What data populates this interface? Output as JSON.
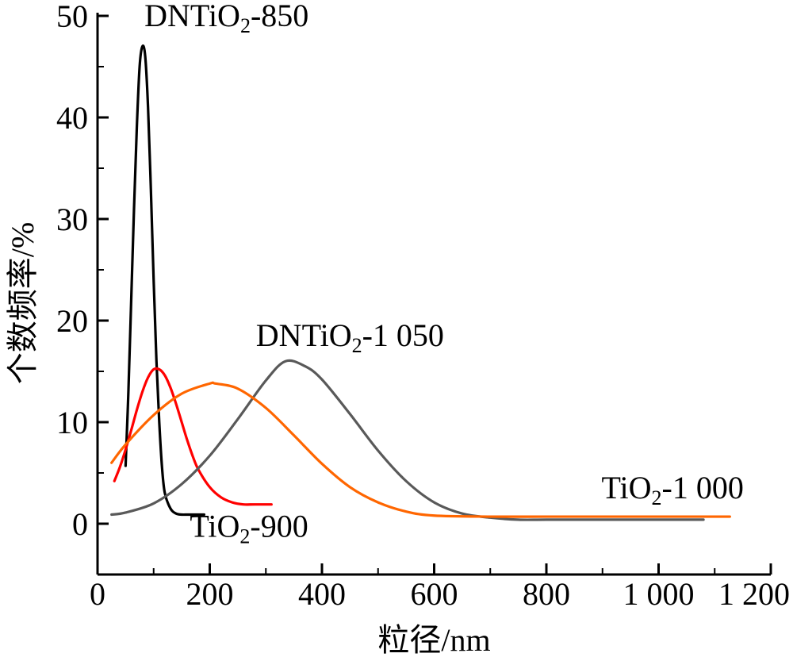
{
  "chart_data": {
    "type": "line",
    "title": "",
    "xlabel": "粒径/nm",
    "ylabel": "个数频率/%",
    "xlim": [
      0,
      1200
    ],
    "ylim": [
      -5,
      50
    ],
    "xticks": [
      0,
      200,
      400,
      600,
      800,
      1000,
      1200
    ],
    "xtick_labels": [
      "0",
      "200",
      "400",
      "600",
      "800",
      "1 000",
      "1 200"
    ],
    "yticks": [
      0,
      10,
      20,
      30,
      40,
      50
    ],
    "ytick_labels": [
      "0",
      "10",
      "20",
      "30",
      "40",
      "50"
    ],
    "grid": false,
    "legend": "none",
    "series": [
      {
        "name": "DNTiO2-850",
        "label": {
          "main": "DNTiO",
          "sub": "2",
          "tail": "-850"
        },
        "color": "#000000",
        "x": [
          50,
          55,
          60,
          65,
          70,
          75,
          80,
          85,
          90,
          95,
          100,
          105,
          110,
          115,
          120,
          130,
          140,
          150,
          160,
          170,
          190
        ],
        "y": [
          5.7,
          13,
          22,
          31,
          39,
          45,
          47,
          46,
          41,
          33,
          24,
          16,
          10,
          5.5,
          3,
          1.5,
          1,
          0.9,
          0.9,
          0.9,
          0.9
        ]
      },
      {
        "name": "TiO2-900",
        "label": {
          "main": "TiO",
          "sub": "2",
          "tail": "-900"
        },
        "color": "#ff0000",
        "x": [
          30,
          40,
          50,
          60,
          70,
          80,
          90,
          100,
          110,
          120,
          130,
          140,
          150,
          160,
          170,
          180,
          200,
          220,
          240,
          260,
          280,
          310
        ],
        "y": [
          4.2,
          5.6,
          7.3,
          9.2,
          11.2,
          13,
          14.4,
          15.2,
          15.2,
          14.6,
          13.4,
          11.8,
          10,
          8.2,
          6.6,
          5.3,
          3.6,
          2.6,
          2.1,
          1.9,
          1.9,
          1.9
        ]
      },
      {
        "name": "DNTiO2-1 050",
        "label": {
          "main": "DNTiO",
          "sub": "2",
          "tail": "-1 050"
        },
        "color": "#595959",
        "x": [
          25,
          50,
          100,
          150,
          200,
          250,
          300,
          335,
          370,
          400,
          450,
          500,
          550,
          600,
          650,
          700,
          750,
          800,
          900,
          1000,
          1080
        ],
        "y": [
          0.9,
          1.1,
          2,
          3.9,
          6.7,
          10.3,
          14.1,
          16,
          15.5,
          14.2,
          10.8,
          7.2,
          4.2,
          2.1,
          1,
          0.6,
          0.4,
          0.4,
          0.4,
          0.4,
          0.4
        ]
      },
      {
        "name": "TiO2-1 000",
        "label": {
          "main": "TiO",
          "sub": "2",
          "tail": "-1 000"
        },
        "color": "#ff6600",
        "x": [
          25,
          50,
          100,
          150,
          200,
          210,
          250,
          300,
          350,
          400,
          450,
          500,
          550,
          600,
          700,
          800,
          900,
          1000,
          1127
        ],
        "y": [
          6,
          7.8,
          10.7,
          12.8,
          13.8,
          13.8,
          13.3,
          11.4,
          8.7,
          5.9,
          3.6,
          2.1,
          1.2,
          0.8,
          0.7,
          0.7,
          0.7,
          0.7,
          0.7
        ]
      }
    ],
    "annotations": [
      {
        "series": "DNTiO2-850",
        "at_x": 230,
        "at_y": 49
      },
      {
        "series": "TiO2-900",
        "at_x": 270,
        "at_y": -1.3
      },
      {
        "series": "DNTiO2-1 050",
        "at_x": 450,
        "at_y": 17.5
      },
      {
        "series": "TiO2-1 000",
        "at_x": 1025,
        "at_y": 2.5
      }
    ]
  }
}
